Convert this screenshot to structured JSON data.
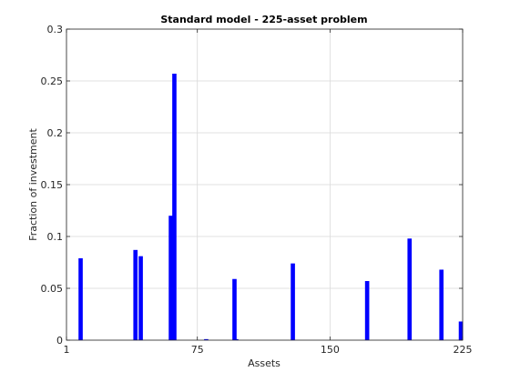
{
  "chart_data": {
    "type": "bar",
    "title": "Standard model - 225-asset problem",
    "xlabel": "Assets",
    "ylabel": "Fraction of investment",
    "xlim": [
      1,
      225
    ],
    "ylim": [
      0,
      0.3
    ],
    "xticks": [
      1,
      75,
      150,
      225
    ],
    "xtick_labels": [
      "1",
      "75",
      "150",
      "225"
    ],
    "yticks": [
      0,
      0.05,
      0.1,
      0.15,
      0.2,
      0.25,
      0.3
    ],
    "ytick_labels": [
      "0",
      "0.05",
      "0.1",
      "0.15",
      "0.2",
      "0.25",
      "0.3"
    ],
    "grid": true,
    "bar_color": "#0000ff",
    "series": [
      {
        "x": [
          9,
          40,
          43,
          60,
          62,
          80,
          96,
          97,
          129,
          171,
          195,
          213,
          224
        ],
        "values": [
          0.079,
          0.087,
          0.081,
          0.12,
          0.257,
          0.001,
          0.059,
          0.001,
          0.074,
          0.057,
          0.098,
          0.068,
          0.018
        ]
      }
    ]
  }
}
